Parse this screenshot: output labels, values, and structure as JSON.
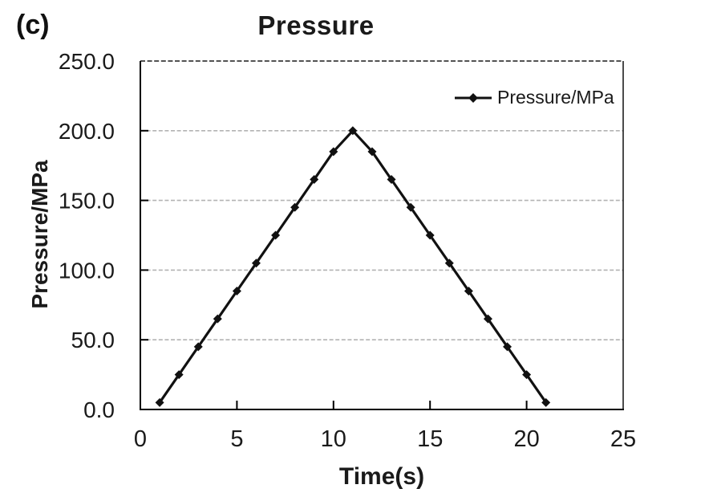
{
  "figure_label": "(c)",
  "chart_data": {
    "type": "line",
    "title": "Pressure",
    "xlabel": "Time(s)",
    "ylabel": "Pressure/MPa",
    "legend_entries": [
      {
        "label": "Pressure/MPa",
        "marker": "diamond",
        "color": "#111111"
      }
    ],
    "legend_position": "inside-top-right",
    "x": [
      1,
      2,
      3,
      4,
      5,
      6,
      7,
      8,
      9,
      10,
      11,
      12,
      13,
      14,
      15,
      16,
      17,
      18,
      19,
      20,
      21
    ],
    "series": [
      {
        "name": "Pressure/MPa",
        "values": [
          5,
          25,
          45,
          65,
          85,
          105,
          125,
          145,
          165,
          185,
          200,
          185,
          165,
          145,
          125,
          105,
          85,
          65,
          45,
          25,
          5
        ]
      }
    ],
    "xlim": [
      0,
      25
    ],
    "ylim": [
      0,
      250
    ],
    "x_ticks": [
      0,
      5,
      10,
      15,
      20,
      25
    ],
    "x_tick_labels": [
      "0",
      "5",
      "10",
      "15",
      "20",
      "25"
    ],
    "y_ticks": [
      0,
      50,
      100,
      150,
      200,
      250
    ],
    "y_tick_labels": [
      "0.0",
      "50.0",
      "100.0",
      "150.0",
      "200.0",
      "250.0"
    ],
    "grid": "horizontal-dashed",
    "colors": {
      "series": "#111111",
      "marker": "#111111",
      "gridline": "#b3b3b3",
      "top_border_dashed": "#1a1a1a",
      "axis": "#000000",
      "background": "#ffffff"
    }
  }
}
